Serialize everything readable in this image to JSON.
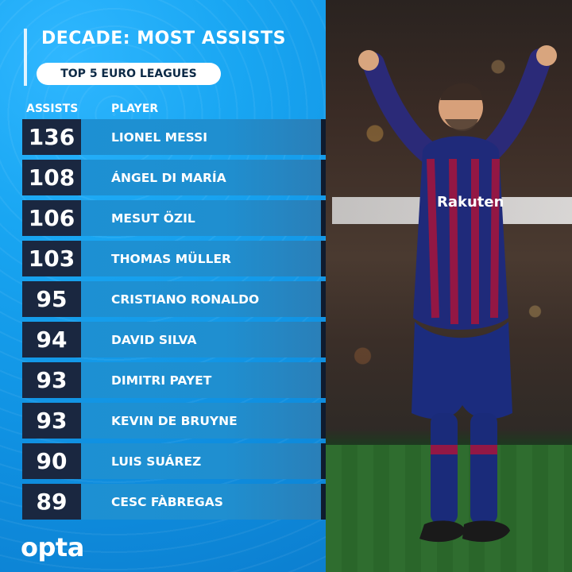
{
  "graphic": {
    "title": "DECADE: MOST ASSISTS",
    "subtitle": "TOP 5 EURO LEAGUES",
    "columns": {
      "assists": "ASSISTS",
      "player": "PLAYER"
    },
    "rows": [
      {
        "assists": "136",
        "player": "LIONEL MESSI"
      },
      {
        "assists": "108",
        "player": "ÁNGEL DI MARÍA"
      },
      {
        "assists": "106",
        "player": "MESUT ÖZIL"
      },
      {
        "assists": "103",
        "player": "THOMAS MÜLLER"
      },
      {
        "assists": "95",
        "player": "CRISTIANO RONALDO"
      },
      {
        "assists": "94",
        "player": "DAVID SILVA"
      },
      {
        "assists": "93",
        "player": "DIMITRI PAYET"
      },
      {
        "assists": "93",
        "player": "KEVIN DE BRUYNE"
      },
      {
        "assists": "90",
        "player": "LUIS SUÁREZ"
      },
      {
        "assists": "89",
        "player": "CESC FÀBREGAS"
      }
    ],
    "brand": "opta"
  },
  "photo": {
    "description_icon": "football-player-photo",
    "jersey_sponsor_text": "Rakuten",
    "board_text": "Rakuten"
  },
  "colors": {
    "panel_blue": "#19a6f2",
    "row_dark": "#1a2740",
    "row_blue": "#1d90d3",
    "text_white": "#ffffff",
    "pill_text": "#0d2a46"
  }
}
